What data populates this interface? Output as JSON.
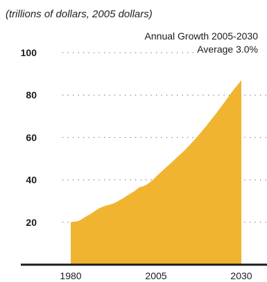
{
  "chart_data": {
    "type": "area",
    "unit_label": "(trillions of dollars, 2005 dollars)",
    "annotation": {
      "line1": "Annual Growth 2005-2030",
      "line2": "Average 3.0%"
    },
    "x": [
      1980,
      1981,
      1982,
      1983,
      1984,
      1985,
      1986,
      1987,
      1988,
      1989,
      1990,
      1991,
      1992,
      1993,
      1994,
      1995,
      1996,
      1997,
      1998,
      1999,
      2000,
      2001,
      2002,
      2003,
      2004,
      2005,
      2006,
      2007,
      2008,
      2009,
      2010,
      2011,
      2012,
      2013,
      2014,
      2015,
      2016,
      2017,
      2018,
      2019,
      2020,
      2021,
      2022,
      2023,
      2024,
      2025,
      2026,
      2027,
      2028,
      2029,
      2030
    ],
    "values": [
      20.0,
      20.3,
      20.5,
      21.2,
      22.3,
      23.2,
      24.1,
      25.2,
      26.3,
      27.1,
      27.7,
      28.1,
      28.6,
      29.2,
      30.1,
      31.0,
      32.0,
      33.1,
      34.0,
      35.1,
      36.4,
      36.9,
      37.5,
      38.6,
      39.9,
      41.5,
      43.0,
      44.5,
      46.0,
      47.4,
      48.9,
      50.4,
      51.9,
      53.4,
      55.0,
      56.7,
      58.4,
      60.2,
      62.1,
      64.0,
      66.0,
      68.0,
      70.1,
      72.2,
      74.3,
      76.5,
      78.7,
      80.9,
      83.1,
      85.0,
      87.0
    ],
    "ylim": [
      0,
      100
    ],
    "yticks": [
      "20",
      "40",
      "60",
      "80",
      "100"
    ],
    "xticks": [
      "1980",
      "2005",
      "2030"
    ],
    "grid": true,
    "fill_color": "#f0b431",
    "axis_color": "#1a1a1a"
  }
}
